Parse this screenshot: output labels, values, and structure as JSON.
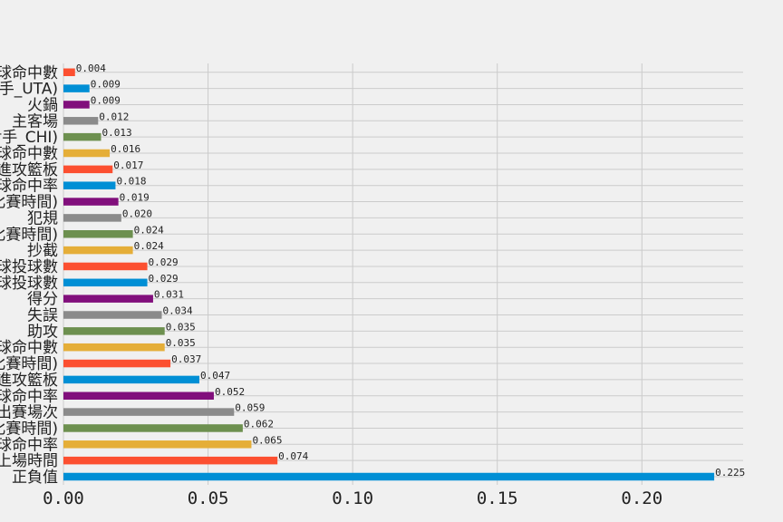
{
  "chart_data": {
    "type": "bar",
    "orientation": "horizontal",
    "title": "",
    "xlabel": "",
    "ylabel": "",
    "xlim": [
      0,
      0.235
    ],
    "grid": true,
    "legend": false,
    "x_ticks": [
      "0.00",
      "0.05",
      "0.10",
      "0.15",
      "0.20"
    ],
    "x_tick_values": [
      0,
      0.05,
      0.1,
      0.15,
      0.2
    ],
    "categories": [
      "正負值",
      "上場時間",
      "罰球命中率",
      "(對手_比賽時間)",
      "先發出賽場次",
      "三分球命中率",
      "進攻籃板",
      "(對手_比賽時間)",
      "罰球命中數",
      "助攻",
      "失誤",
      "得分",
      "三分球投球數",
      "罰球投球數",
      "抄截",
      "(對手_比賽時間)",
      "犯規",
      "(對手_比賽時間)",
      "投球命中率",
      "進攻籃板",
      "投球命中數",
      "(對手_CHI)",
      "主客場",
      "火鍋",
      "(對手_UTA)",
      "三分球命中數"
    ],
    "values": [
      0.225,
      0.074,
      0.065,
      0.062,
      0.059,
      0.052,
      0.047,
      0.037,
      0.035,
      0.035,
      0.034,
      0.031,
      0.029,
      0.029,
      0.024,
      0.024,
      0.02,
      0.019,
      0.018,
      0.017,
      0.016,
      0.013,
      0.012,
      0.009,
      0.009,
      0.004
    ],
    "value_labels": [
      "0.225",
      "0.074",
      "0.065",
      "0.062",
      "0.059",
      "0.052",
      "0.047",
      "0.037",
      "0.035",
      "0.035",
      "0.034",
      "0.031",
      "0.029",
      "0.029",
      "0.024",
      "0.024",
      "0.020",
      "0.019",
      "0.018",
      "0.017",
      "0.016",
      "0.013",
      "0.012",
      "0.009",
      "0.009",
      "0.004"
    ],
    "colors": [
      "#008fd5",
      "#fc4f30",
      "#e5ae38",
      "#6d904f",
      "#8b8b8b",
      "#810f7c"
    ]
  }
}
